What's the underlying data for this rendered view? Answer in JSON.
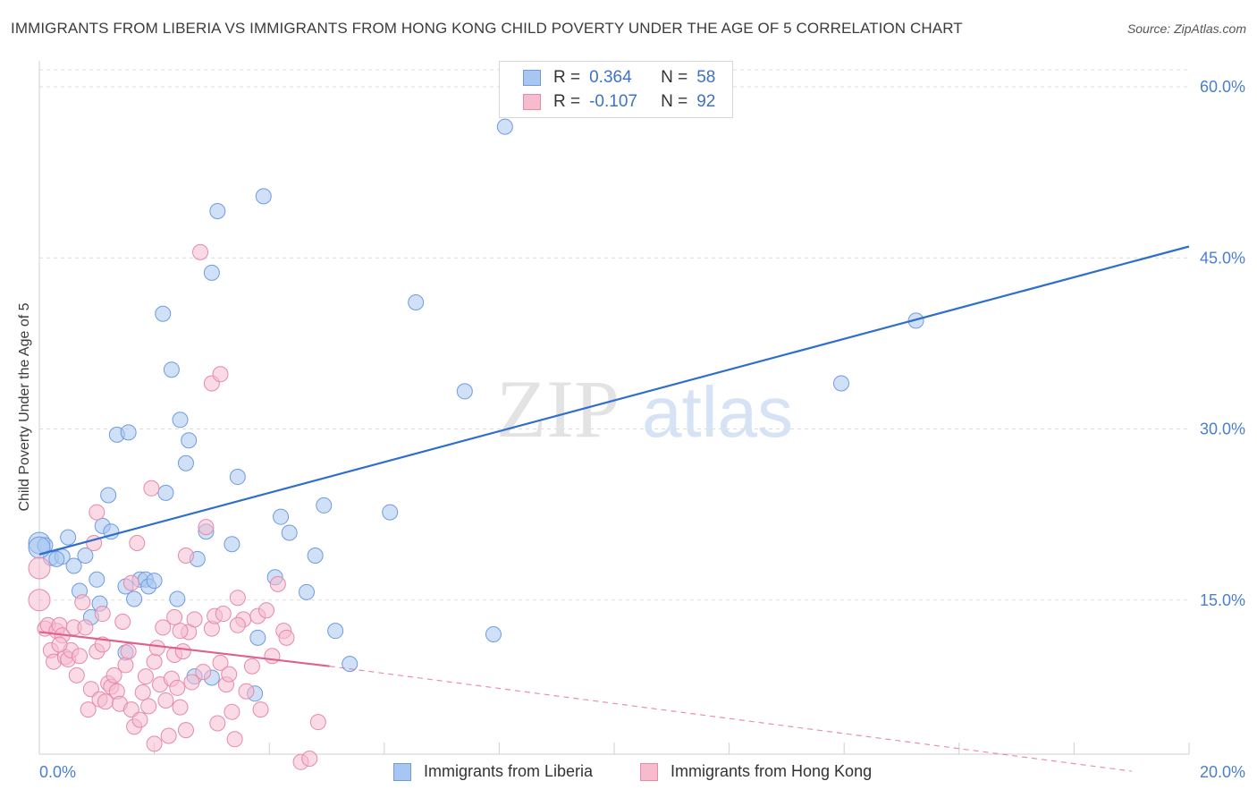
{
  "title": "IMMIGRANTS FROM LIBERIA VS IMMIGRANTS FROM HONG KONG CHILD POVERTY UNDER THE AGE OF 5 CORRELATION CHART",
  "source": "Source: ZipAtlas.com",
  "watermark": {
    "zip": "ZIP",
    "atlas": "atlas"
  },
  "legend_stats": [
    {
      "r_label": "R =",
      "r_value": "0.364",
      "n_label": "N =",
      "n_value": "58",
      "color": "#a9c6f0",
      "border": "#6f9be0"
    },
    {
      "r_label": "R =",
      "r_value": "-0.107",
      "n_label": "N =",
      "n_value": "92",
      "color": "#f6bccd",
      "border": "#e68aa8"
    }
  ],
  "chart_data": {
    "type": "scatter",
    "title": "IMMIGRANTS FROM LIBERIA VS IMMIGRANTS FROM HONG KONG CHILD POVERTY UNDER THE AGE OF 5 CORRELATION CHART",
    "xlabel": "",
    "ylabel": "Child Poverty Under the Age of 5",
    "xlim": [
      0,
      20
    ],
    "ylim": [
      0,
      60
    ],
    "x_tick_labels": [
      {
        "value": 0,
        "label": "0.0%"
      },
      {
        "value": 20,
        "label": "20.0%"
      }
    ],
    "y_tick_labels": [
      {
        "value": 15,
        "label": "15.0%"
      },
      {
        "value": 30,
        "label": "30.0%"
      },
      {
        "value": 45,
        "label": "45.0%"
      },
      {
        "value": 60,
        "label": "60.0%"
      }
    ],
    "grid": true,
    "legend_position": "bottom",
    "series": [
      {
        "name": "Immigrants from Liberia",
        "color": "#a9c6f0",
        "edge": "#6f9be0",
        "trend": {
          "x0": 0,
          "y0": 19.0,
          "x1": 20,
          "y1": 46.0,
          "color": "#2f6fcc"
        },
        "points": [
          [
            0.0,
            20.0
          ],
          [
            0.1,
            19.8
          ],
          [
            0.2,
            18.7
          ],
          [
            0.4,
            18.8
          ],
          [
            0.5,
            20.5
          ],
          [
            0.6,
            18.0
          ],
          [
            0.8,
            18.9
          ],
          [
            0.7,
            15.8
          ],
          [
            0.9,
            13.5
          ],
          [
            1.0,
            16.8
          ],
          [
            1.05,
            14.7
          ],
          [
            1.1,
            21.5
          ],
          [
            1.25,
            21.0
          ],
          [
            1.2,
            24.2
          ],
          [
            1.35,
            29.5
          ],
          [
            1.5,
            16.2
          ],
          [
            1.5,
            10.4
          ],
          [
            1.55,
            29.7
          ],
          [
            1.65,
            15.1
          ],
          [
            1.75,
            16.8
          ],
          [
            1.85,
            16.8
          ],
          [
            1.9,
            16.2
          ],
          [
            2.0,
            16.7
          ],
          [
            2.15,
            40.1
          ],
          [
            2.2,
            24.4
          ],
          [
            2.3,
            35.2
          ],
          [
            2.4,
            15.1
          ],
          [
            2.45,
            30.8
          ],
          [
            2.55,
            27.0
          ],
          [
            2.6,
            29.0
          ],
          [
            2.7,
            8.3
          ],
          [
            2.75,
            18.6
          ],
          [
            2.9,
            21.0
          ],
          [
            3.0,
            43.7
          ],
          [
            3.1,
            49.1
          ],
          [
            3.0,
            8.2
          ],
          [
            3.35,
            19.9
          ],
          [
            3.45,
            25.8
          ],
          [
            3.75,
            6.8
          ],
          [
            3.8,
            11.7
          ],
          [
            3.9,
            50.4
          ],
          [
            4.1,
            17.0
          ],
          [
            4.2,
            22.3
          ],
          [
            4.35,
            20.9
          ],
          [
            4.65,
            15.7
          ],
          [
            4.8,
            18.9
          ],
          [
            4.95,
            23.3
          ],
          [
            5.15,
            12.3
          ],
          [
            5.4,
            9.4
          ],
          [
            6.1,
            22.7
          ],
          [
            6.55,
            41.1
          ],
          [
            7.4,
            33.3
          ],
          [
            7.9,
            12.0
          ],
          [
            8.1,
            56.5
          ],
          [
            13.95,
            34.0
          ],
          [
            15.25,
            39.5
          ],
          [
            0.0,
            19.6
          ],
          [
            0.3,
            18.6
          ]
        ]
      },
      {
        "name": "Immigrants from Hong Kong",
        "color": "#f6bccd",
        "edge": "#e68aa8",
        "trend": {
          "x0": 0,
          "y0": 12.2,
          "x1": 5.05,
          "y1": 9.2,
          "color": "#e0608e"
        },
        "trend_extension": {
          "x0": 5.05,
          "y0": 9.2,
          "x1": 19.0,
          "y1": 0.0
        },
        "points": [
          [
            0.0,
            17.8
          ],
          [
            0.0,
            15.0
          ],
          [
            0.1,
            12.5
          ],
          [
            0.15,
            12.8
          ],
          [
            0.2,
            10.6
          ],
          [
            0.25,
            9.6
          ],
          [
            0.3,
            12.3
          ],
          [
            0.35,
            12.8
          ],
          [
            0.4,
            11.9
          ],
          [
            0.45,
            10.0
          ],
          [
            0.5,
            9.8
          ],
          [
            0.55,
            10.6
          ],
          [
            0.6,
            12.6
          ],
          [
            0.65,
            8.4
          ],
          [
            0.7,
            10.1
          ],
          [
            0.75,
            14.8
          ],
          [
            0.8,
            12.6
          ],
          [
            0.85,
            5.4
          ],
          [
            0.9,
            7.2
          ],
          [
            0.95,
            20.0
          ],
          [
            1.0,
            22.7
          ],
          [
            1.0,
            10.5
          ],
          [
            1.05,
            6.3
          ],
          [
            1.1,
            11.1
          ],
          [
            1.15,
            6.1
          ],
          [
            1.2,
            7.7
          ],
          [
            1.25,
            7.4
          ],
          [
            1.3,
            8.4
          ],
          [
            1.35,
            7.0
          ],
          [
            1.4,
            5.9
          ],
          [
            1.45,
            13.1
          ],
          [
            1.5,
            9.3
          ],
          [
            1.55,
            10.5
          ],
          [
            1.6,
            5.4
          ],
          [
            1.6,
            16.5
          ],
          [
            1.65,
            3.9
          ],
          [
            1.7,
            20.0
          ],
          [
            1.75,
            4.5
          ],
          [
            1.8,
            6.9
          ],
          [
            1.85,
            8.3
          ],
          [
            1.9,
            5.7
          ],
          [
            1.95,
            24.8
          ],
          [
            2.0,
            9.6
          ],
          [
            2.05,
            10.8
          ],
          [
            2.1,
            7.6
          ],
          [
            2.15,
            12.6
          ],
          [
            2.2,
            6.2
          ],
          [
            2.25,
            3.1
          ],
          [
            2.3,
            8.1
          ],
          [
            2.35,
            10.2
          ],
          [
            2.4,
            7.3
          ],
          [
            2.45,
            5.6
          ],
          [
            2.5,
            10.5
          ],
          [
            2.55,
            18.9
          ],
          [
            2.6,
            12.2
          ],
          [
            2.65,
            7.8
          ],
          [
            2.7,
            13.3
          ],
          [
            2.8,
            45.5
          ],
          [
            2.85,
            8.7
          ],
          [
            2.9,
            21.4
          ],
          [
            3.0,
            12.5
          ],
          [
            3.05,
            13.6
          ],
          [
            3.1,
            4.2
          ],
          [
            3.15,
            9.5
          ],
          [
            3.2,
            13.8
          ],
          [
            3.25,
            7.6
          ],
          [
            3.3,
            8.5
          ],
          [
            3.35,
            5.2
          ],
          [
            3.4,
            2.8
          ],
          [
            3.45,
            15.2
          ],
          [
            3.55,
            13.3
          ],
          [
            3.6,
            7.0
          ],
          [
            3.7,
            9.2
          ],
          [
            3.8,
            13.6
          ],
          [
            3.85,
            5.4
          ],
          [
            3.95,
            14.1
          ],
          [
            4.05,
            10.1
          ],
          [
            4.15,
            16.4
          ],
          [
            4.25,
            12.3
          ],
          [
            4.3,
            11.7
          ],
          [
            4.55,
            0.8
          ],
          [
            4.7,
            1.1
          ],
          [
            4.85,
            4.3
          ],
          [
            3.0,
            34.0
          ],
          [
            3.15,
            34.8
          ],
          [
            2.55,
            3.6
          ],
          [
            2.0,
            2.4
          ],
          [
            2.45,
            12.3
          ],
          [
            1.1,
            13.8
          ],
          [
            2.35,
            13.5
          ],
          [
            3.45,
            12.8
          ],
          [
            0.35,
            11.1
          ]
        ]
      }
    ]
  },
  "bottom_legend": [
    "Immigrants from Liberia",
    "Immigrants from Hong Kong"
  ]
}
